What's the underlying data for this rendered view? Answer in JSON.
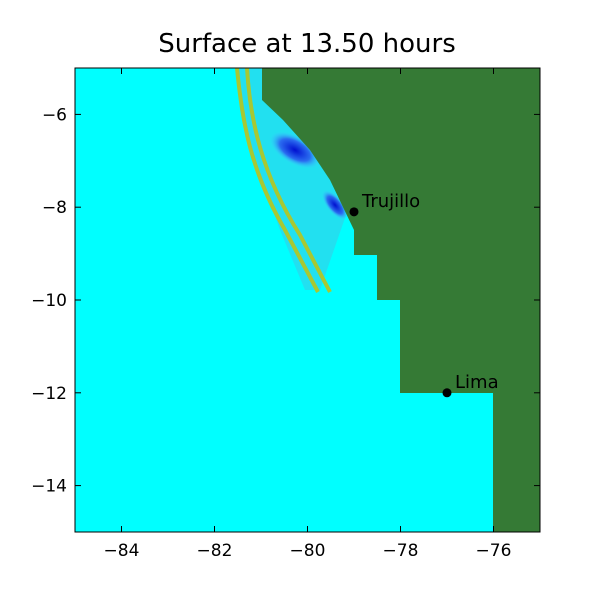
{
  "chart_data": {
    "type": "scatter",
    "title": "Surface at 13.50 hours",
    "x": [
      -79.0,
      -77.0
    ],
    "values": [
      -8.1,
      -12.0
    ],
    "labels": [
      "Trujillo",
      "Lima"
    ],
    "color": "#000000",
    "xlim": [
      -85,
      -75
    ],
    "ylim": [
      -15,
      -5
    ],
    "xticks": [
      {
        "value": -84,
        "label": "−84"
      },
      {
        "value": -82,
        "label": "−82"
      },
      {
        "value": -80,
        "label": "−80"
      },
      {
        "value": -78,
        "label": "−78"
      },
      {
        "value": -76,
        "label": "−76"
      }
    ],
    "yticks": [
      {
        "value": -14,
        "label": "−14"
      },
      {
        "value": -12,
        "label": "−12"
      },
      {
        "value": -10,
        "label": "−10"
      },
      {
        "value": -8,
        "label": "−8"
      },
      {
        "value": -6,
        "label": "−6"
      }
    ]
  }
}
